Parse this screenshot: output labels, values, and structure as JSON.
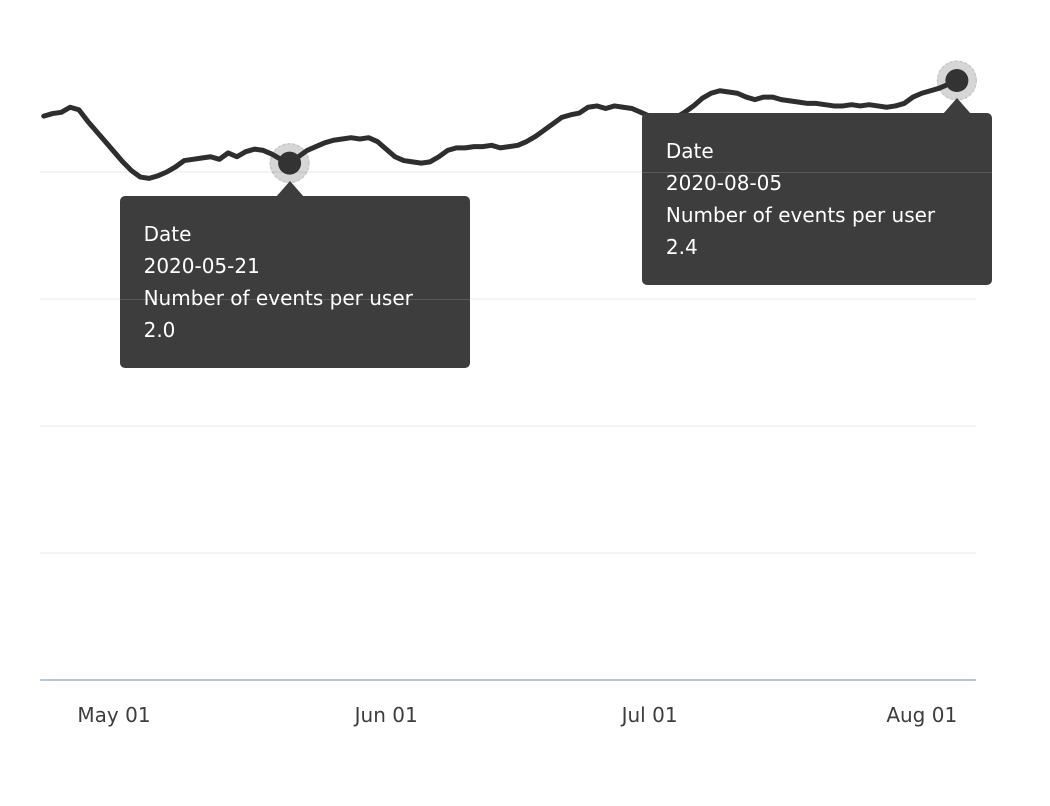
{
  "chart_data": {
    "type": "line",
    "title": "",
    "xlabel": "Date",
    "ylabel": "Number of events per user",
    "series_name": "Number of events per user",
    "legend_position": "none",
    "grid": "horizontal-only",
    "ylim": [
      0,
      2.75
    ],
    "gridline_values": [
      0.5,
      1.0,
      1.5,
      2.0
    ],
    "baseline_value": 0,
    "x_ticks": [
      {
        "label": "May 01",
        "day_offset": 0
      },
      {
        "label": "Jun 01",
        "day_offset": 31
      },
      {
        "label": "Jul 01",
        "day_offset": 61
      },
      {
        "label": "Aug 01",
        "day_offset": 92
      }
    ],
    "start_date": "2020-04-23",
    "start_day_offset": -8,
    "values": [
      2.22,
      2.23,
      2.235,
      2.255,
      2.245,
      2.2,
      2.16,
      2.12,
      2.08,
      2.04,
      2.005,
      1.98,
      1.975,
      1.985,
      2.0,
      2.02,
      2.045,
      2.05,
      2.055,
      2.06,
      2.05,
      2.075,
      2.06,
      2.08,
      2.09,
      2.085,
      2.07,
      2.05,
      2.035,
      2.06,
      2.085,
      2.1,
      2.115,
      2.125,
      2.13,
      2.135,
      2.13,
      2.135,
      2.12,
      2.09,
      2.06,
      2.045,
      2.04,
      2.035,
      2.04,
      2.06,
      2.085,
      2.095,
      2.095,
      2.1,
      2.1,
      2.105,
      2.095,
      2.1,
      2.105,
      2.12,
      2.14,
      2.165,
      2.19,
      2.215,
      2.225,
      2.232,
      2.255,
      2.26,
      2.25,
      2.26,
      2.255,
      2.25,
      2.235,
      2.22,
      2.21,
      2.205,
      2.215,
      2.235,
      2.26,
      2.29,
      2.31,
      2.32,
      2.315,
      2.31,
      2.295,
      2.285,
      2.295,
      2.295,
      2.285,
      2.28,
      2.275,
      2.27,
      2.27,
      2.265,
      2.26,
      2.26,
      2.265,
      2.26,
      2.265,
      2.26,
      2.255,
      2.26,
      2.27,
      2.295,
      2.31,
      2.32,
      2.33,
      2.345,
      2.36
    ]
  },
  "highlights": [
    {
      "date": "2020-05-21",
      "point_index": 28,
      "display_value": "2.0"
    },
    {
      "date": "2020-08-05",
      "point_index": 104,
      "display_value": "2.4"
    }
  ],
  "tooltips": [
    {
      "label1": "Date",
      "value1": "2020-05-21",
      "label2": "Number of events per user",
      "value2": "2.0"
    },
    {
      "label1": "Date",
      "value1": "2020-08-05",
      "label2": "Number of events per user",
      "value2": "2.4"
    }
  ],
  "colors": {
    "background": "#ffffff",
    "line": "#2e2e2e",
    "marker": "#333333",
    "marker_halo": "rgba(0,0,0,0.16)",
    "marker_halo_ring": "rgba(0,0,0,0.10)",
    "gridline": "#e8e8e8",
    "axis_line": "#b7c4da",
    "tooltip_bg": "#3d3d3d",
    "tooltip_text": "#ffffff",
    "tick_label": "#3d3d3d"
  }
}
